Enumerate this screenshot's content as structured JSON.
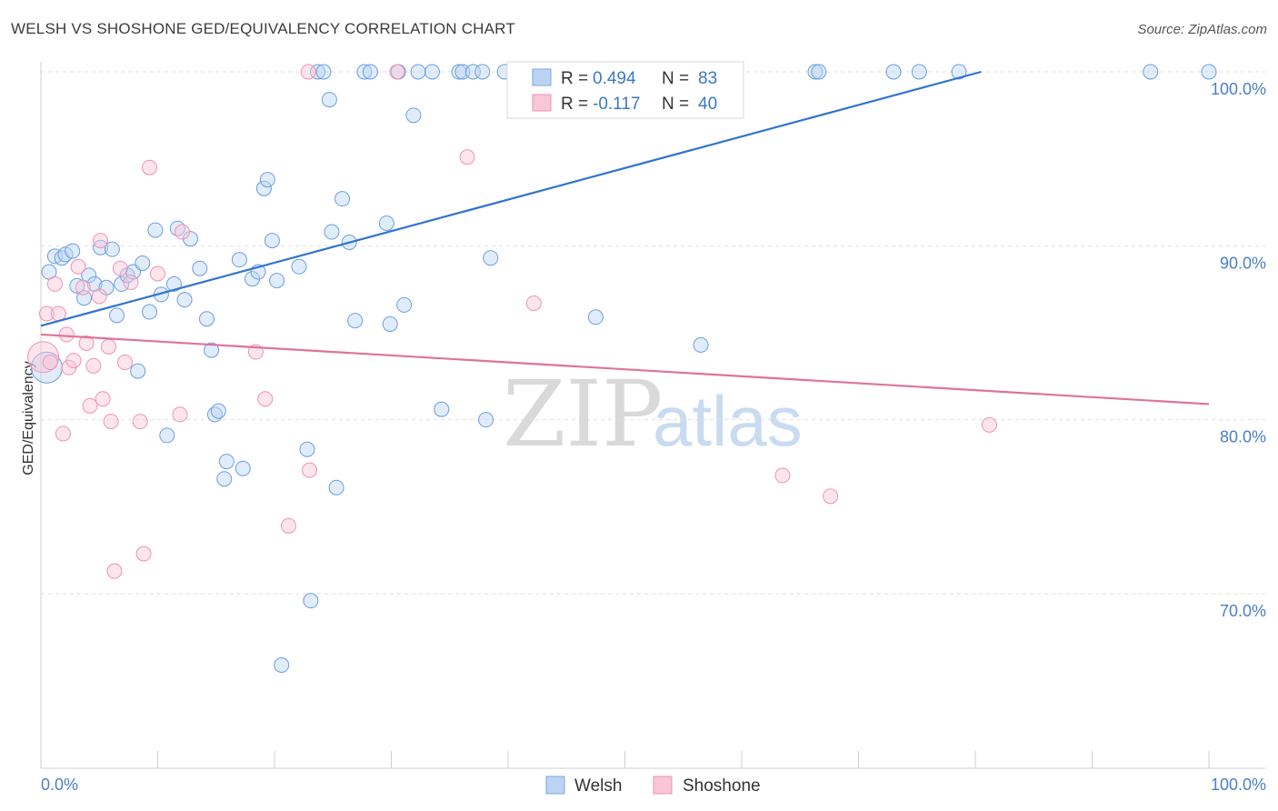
{
  "header": {
    "title": "WELSH VS SHOSHONE GED/EQUIVALENCY CORRELATION CHART",
    "source": "Source: ZipAtlas.com"
  },
  "chart_data": {
    "type": "scatter",
    "title": "WELSH VS SHOSHONE GED/EQUIVALENCY CORRELATION CHART",
    "xlabel": "",
    "ylabel": "GED/Equivalency",
    "xlim": [
      0,
      100
    ],
    "ylim": [
      60,
      101
    ],
    "x_tick_labels": [
      "0.0%",
      "100.0%"
    ],
    "y_ticks": [
      100,
      90,
      80,
      70
    ],
    "y_tick_labels": [
      "100.0%",
      "90.0%",
      "80.0%",
      "70.0%"
    ],
    "grid": true,
    "legend_position": "top-center",
    "colors": {
      "welsh": "#6a9fdf",
      "welsh_line": "#2f74cf",
      "shoshone": "#ee93b1",
      "shoshone_line": "#e0729b"
    },
    "series": [
      {
        "name": "Welsh",
        "r_label": "R =",
        "r_value": "0.494",
        "n_label": "N =",
        "n_value": "83",
        "trend": {
          "x": [
            0,
            80.5
          ],
          "y": [
            85.4,
            100
          ]
        },
        "points": [
          [
            0.5,
            83.0
          ],
          [
            0.7,
            88.5
          ],
          [
            1.2,
            89.4
          ],
          [
            1.8,
            89.3
          ],
          [
            2.1,
            89.5
          ],
          [
            2.7,
            89.7
          ],
          [
            3.1,
            87.7
          ],
          [
            3.7,
            87.0
          ],
          [
            4.1,
            88.3
          ],
          [
            4.6,
            87.8
          ],
          [
            5.1,
            89.9
          ],
          [
            5.6,
            87.6
          ],
          [
            6.1,
            89.8
          ],
          [
            6.5,
            86.0
          ],
          [
            6.9,
            87.8
          ],
          [
            7.4,
            88.3
          ],
          [
            7.9,
            88.5
          ],
          [
            8.3,
            82.8
          ],
          [
            8.7,
            89.0
          ],
          [
            9.3,
            86.2
          ],
          [
            9.8,
            90.9
          ],
          [
            10.3,
            87.2
          ],
          [
            10.8,
            79.1
          ],
          [
            11.4,
            87.8
          ],
          [
            11.7,
            91.0
          ],
          [
            12.3,
            86.9
          ],
          [
            12.8,
            90.4
          ],
          [
            13.6,
            88.7
          ],
          [
            14.2,
            85.8
          ],
          [
            14.6,
            84.0
          ],
          [
            14.9,
            80.3
          ],
          [
            15.2,
            80.5
          ],
          [
            15.7,
            76.6
          ],
          [
            15.9,
            77.6
          ],
          [
            17.3,
            77.2
          ],
          [
            17.0,
            89.2
          ],
          [
            18.1,
            88.1
          ],
          [
            18.6,
            88.5
          ],
          [
            19.1,
            93.3
          ],
          [
            19.4,
            93.8
          ],
          [
            19.8,
            90.3
          ],
          [
            20.2,
            88.0
          ],
          [
            20.6,
            65.9
          ],
          [
            22.1,
            88.8
          ],
          [
            22.8,
            78.3
          ],
          [
            23.1,
            69.6
          ],
          [
            23.7,
            100
          ],
          [
            24.2,
            100
          ],
          [
            24.7,
            98.4
          ],
          [
            24.9,
            90.8
          ],
          [
            25.3,
            76.1
          ],
          [
            25.8,
            92.7
          ],
          [
            26.4,
            90.2
          ],
          [
            26.9,
            85.7
          ],
          [
            27.7,
            100
          ],
          [
            28.2,
            100
          ],
          [
            29.6,
            91.3
          ],
          [
            29.9,
            85.5
          ],
          [
            30.6,
            100
          ],
          [
            31.1,
            86.6
          ],
          [
            31.9,
            97.5
          ],
          [
            32.3,
            100
          ],
          [
            33.5,
            100
          ],
          [
            34.3,
            80.6
          ],
          [
            35.8,
            100
          ],
          [
            36.1,
            100
          ],
          [
            37.0,
            100
          ],
          [
            37.8,
            100
          ],
          [
            38.1,
            80.0
          ],
          [
            38.5,
            89.3
          ],
          [
            39.7,
            100
          ],
          [
            41.2,
            100
          ],
          [
            45.2,
            100
          ],
          [
            47.5,
            85.9
          ],
          [
            53.6,
            100
          ],
          [
            56.5,
            84.3
          ],
          [
            66.3,
            100
          ],
          [
            66.6,
            100
          ],
          [
            73.0,
            100
          ],
          [
            75.2,
            100
          ],
          [
            78.6,
            100
          ],
          [
            95.0,
            100
          ],
          [
            100,
            100
          ]
        ]
      },
      {
        "name": "Shoshone",
        "r_label": "R =",
        "r_value": "-0.117",
        "n_label": "N =",
        "n_value": "40",
        "trend": {
          "x": [
            0,
            100
          ],
          "y": [
            84.9,
            80.9
          ]
        },
        "points": [
          [
            0.2,
            83.6
          ],
          [
            0.5,
            86.1
          ],
          [
            0.8,
            83.3
          ],
          [
            1.2,
            87.8
          ],
          [
            1.5,
            86.1
          ],
          [
            1.9,
            79.2
          ],
          [
            2.2,
            84.9
          ],
          [
            2.4,
            83.0
          ],
          [
            2.8,
            83.4
          ],
          [
            3.2,
            88.8
          ],
          [
            3.6,
            87.6
          ],
          [
            3.9,
            84.4
          ],
          [
            4.2,
            80.8
          ],
          [
            4.5,
            83.1
          ],
          [
            5.0,
            87.1
          ],
          [
            5.1,
            90.3
          ],
          [
            5.3,
            81.2
          ],
          [
            5.8,
            84.2
          ],
          [
            6.0,
            79.9
          ],
          [
            6.3,
            71.3
          ],
          [
            6.8,
            88.7
          ],
          [
            7.2,
            83.3
          ],
          [
            7.7,
            87.9
          ],
          [
            8.5,
            79.9
          ],
          [
            8.8,
            72.3
          ],
          [
            9.3,
            94.5
          ],
          [
            10.0,
            88.4
          ],
          [
            11.9,
            80.3
          ],
          [
            12.1,
            90.8
          ],
          [
            18.4,
            83.9
          ],
          [
            19.2,
            81.2
          ],
          [
            21.2,
            73.9
          ],
          [
            22.9,
            100
          ],
          [
            23.0,
            77.1
          ],
          [
            30.5,
            100
          ],
          [
            36.5,
            95.1
          ],
          [
            42.2,
            86.7
          ],
          [
            63.5,
            76.8
          ],
          [
            67.6,
            75.6
          ],
          [
            81.2,
            79.7
          ]
        ]
      }
    ]
  },
  "watermark": {
    "zip": "ZIP",
    "atlas": "atlas"
  }
}
